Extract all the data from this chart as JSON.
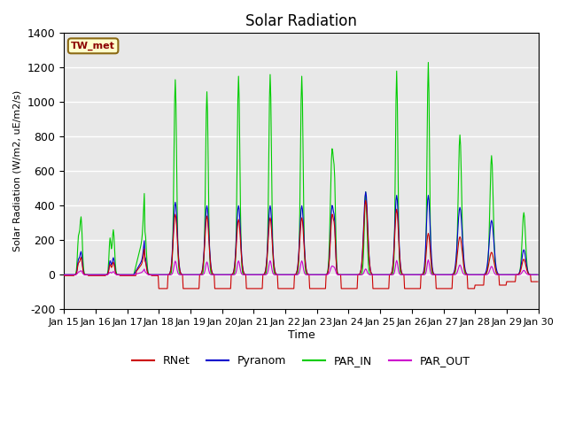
{
  "title": "Solar Radiation",
  "ylabel": "Solar Radiation (W/m2, uE/m2/s)",
  "xlabel": "Time",
  "ylim": [
    -200,
    1400
  ],
  "xlim": [
    0,
    720
  ],
  "background_color": "#e8e8e8",
  "grid_color": "white",
  "series": {
    "RNet": {
      "color": "#cc0000",
      "lw": 0.8
    },
    "Pyranom": {
      "color": "#0000cc",
      "lw": 0.8
    },
    "PAR_IN": {
      "color": "#00cc00",
      "lw": 0.8
    },
    "PAR_OUT": {
      "color": "#cc00cc",
      "lw": 0.8
    }
  },
  "xtick_labels": [
    "Jan 15",
    "Jan 16",
    "Jan 17",
    "Jan 18",
    "Jan 19",
    "Jan 20",
    "Jan 21",
    "Jan 22",
    "Jan 23",
    "Jan 24",
    "Jan 25",
    "Jan 26",
    "Jan 27",
    "Jan 28",
    "Jan 29",
    "Jan 30"
  ],
  "xtick_positions": [
    0,
    48,
    96,
    144,
    192,
    240,
    288,
    336,
    384,
    432,
    480,
    528,
    576,
    624,
    672,
    720
  ],
  "ytick_labels": [
    "-200",
    "0",
    "200",
    "400",
    "600",
    "800",
    "1000",
    "1200",
    "1400"
  ],
  "ytick_values": [
    -200,
    0,
    200,
    400,
    600,
    800,
    1000,
    1200,
    1400
  ],
  "station_label": "TW_met",
  "station_label_color": "#8b0000",
  "station_box_facecolor": "#ffffcc",
  "station_box_edgecolor": "#8b6914"
}
